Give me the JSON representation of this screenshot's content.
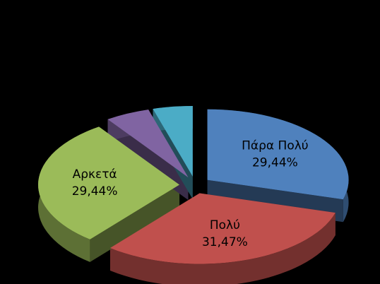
{
  "chart_data": {
    "type": "pie",
    "categories": [
      "Πάρα Πολύ",
      "Πολύ",
      "Αρκετά",
      null,
      null
    ],
    "values": [
      29.44,
      31.47,
      29.44,
      5.1,
      4.55
    ],
    "value_labels": [
      "29,44%",
      "31,47%",
      "29,44%",
      null,
      null
    ],
    "colors": [
      "#4f81bd",
      "#c0504d",
      "#9bbb59",
      "#8064a2",
      "#4bacc6"
    ]
  }
}
